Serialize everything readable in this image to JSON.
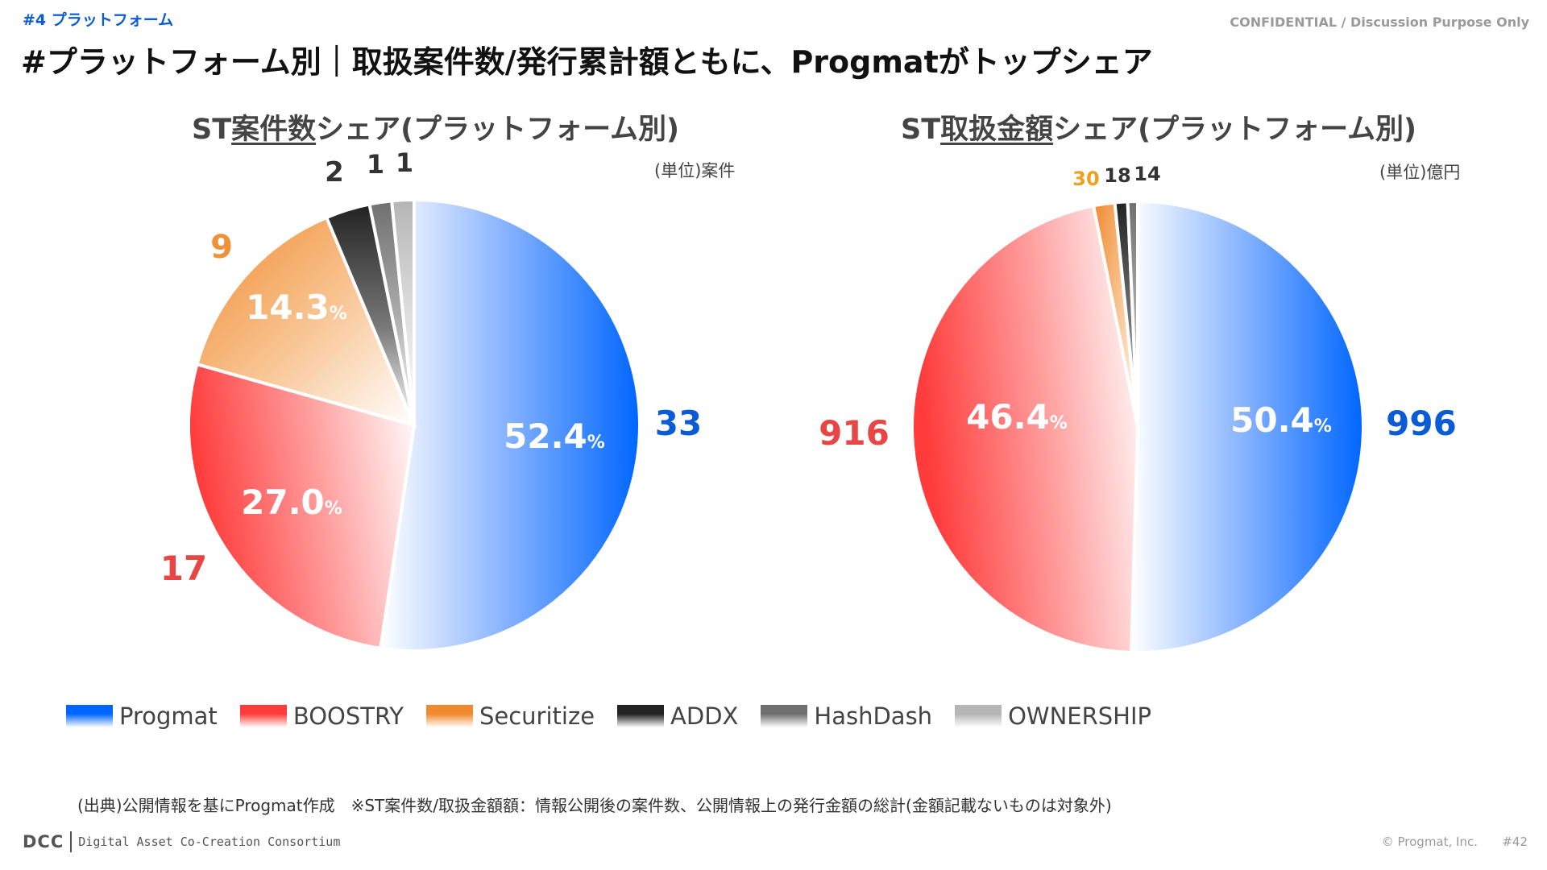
{
  "header": {
    "section_tag": "#4 プラットフォーム",
    "confidential": "CONFIDENTIAL / Discussion Purpose Only",
    "headline": "#プラットフォーム別｜取扱案件数/発行累計額ともに、Progmatがトップシェア"
  },
  "colors": {
    "blue": "#0066ff",
    "red": "#ff3b3b",
    "orange": "#f08a2e",
    "black": "#222222",
    "gray": "#6f6f6f",
    "lightgray": "#b5b5b5"
  },
  "legend": [
    {
      "label": "Progmat",
      "color": "#0066ff"
    },
    {
      "label": "BOOSTRY",
      "color": "#ff3b3b"
    },
    {
      "label": "Securitize",
      "color": "#f08a2e"
    },
    {
      "label": "ADDX",
      "color": "#222222"
    },
    {
      "label": "HashDash",
      "color": "#6f6f6f"
    },
    {
      "label": "OWNERSHIP",
      "color": "#b5b5b5"
    }
  ],
  "chart_data": [
    {
      "type": "pie",
      "title_pre": "ST",
      "title_ul": "案件数",
      "title_post": "シェア(プラットフォーム別)",
      "unit": "(単位)案件",
      "categories": [
        "Progmat",
        "BOOSTRY",
        "Securitize",
        "ADDX",
        "HashDash",
        "OWNERSHIP"
      ],
      "values": [
        33,
        17,
        9,
        2,
        1,
        1
      ],
      "value_labels": [
        "33",
        "17",
        "9",
        "2",
        "1",
        "1"
      ],
      "value_label_colors": [
        "#0a5bd6",
        "#e84545",
        "#f0913a",
        "#333333",
        "#333333",
        "#333333"
      ],
      "pct_labels": [
        {
          "num": "52.4",
          "unit": "%"
        },
        {
          "num": "27.0",
          "unit": "%"
        },
        {
          "num": "14.3",
          "unit": "%"
        },
        null,
        null,
        null
      ]
    },
    {
      "type": "pie",
      "title_pre": "ST",
      "title_ul": "取扱金額",
      "title_post": "シェア(プラットフォーム別)",
      "unit": "(単位)億円",
      "categories": [
        "Progmat",
        "BOOSTRY",
        "Securitize",
        "ADDX",
        "HashDash",
        "OWNERSHIP"
      ],
      "values": [
        996,
        916,
        30,
        18,
        14,
        0
      ],
      "value_labels": [
        "996",
        "916",
        "30",
        "18",
        "14",
        null
      ],
      "value_label_colors": [
        "#0a5bd6",
        "#e84545",
        "#f0a020",
        "#333333",
        "#333333",
        "#333333"
      ],
      "pct_labels": [
        {
          "num": "50.4",
          "unit": "%"
        },
        {
          "num": "46.4",
          "unit": "%"
        },
        null,
        null,
        null,
        null
      ]
    }
  ],
  "footer": {
    "source": "(出典)公開情報を基にProgmat作成　※ST案件数/取扱金額額：情報公開後の案件数、公開情報上の発行金額の総計(金額記載ないものは対象外)",
    "logo_dcc": "DCC",
    "logo_org": "Digital Asset Co-Creation Consortium",
    "copyright": "© Progmat, Inc.",
    "page": "#42"
  }
}
